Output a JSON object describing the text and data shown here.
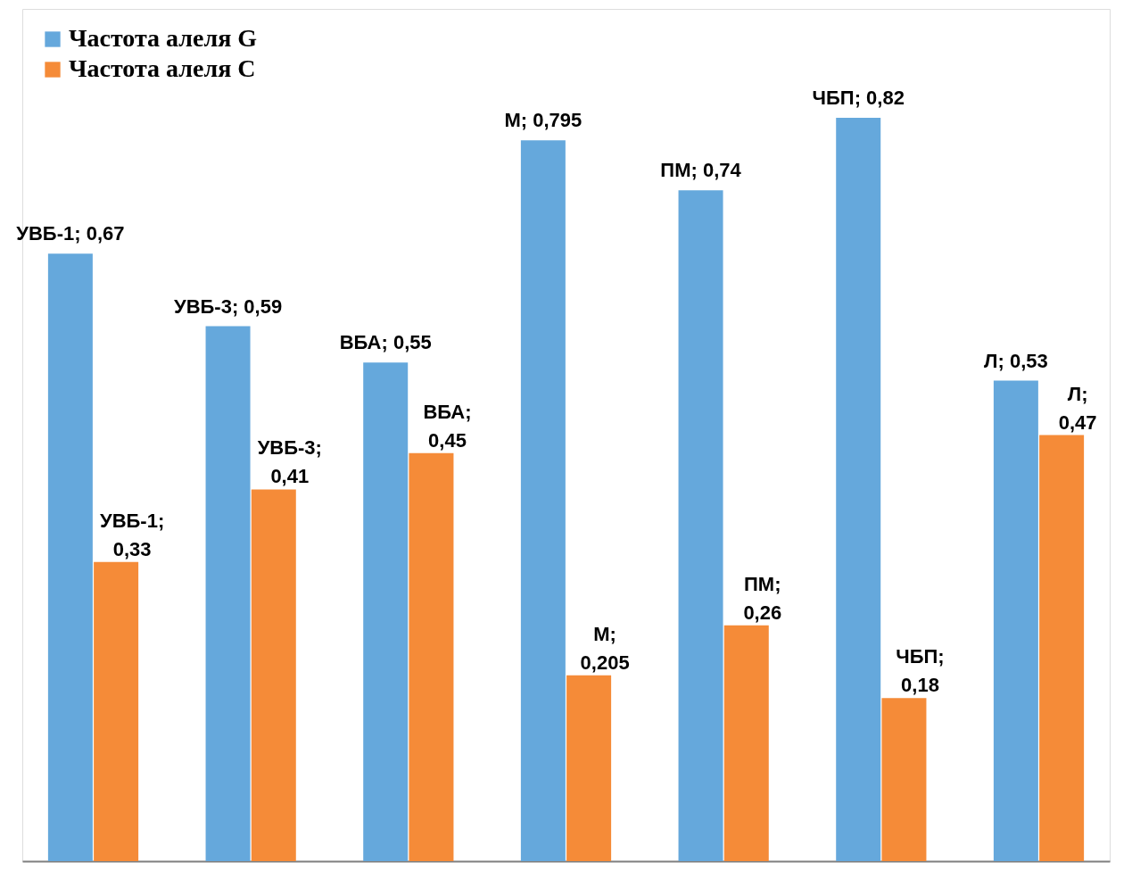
{
  "chart_data": {
    "type": "bar",
    "categories": [
      null,
      null,
      null,
      null,
      null,
      null,
      null
    ],
    "series": [
      {
        "name": "Частота алеля G",
        "color": "#65a8dc",
        "values": [
          0.67,
          0.59,
          0.55,
          0.795,
          0.74,
          0.82,
          0.53
        ],
        "value_labels": [
          "УВБ-1; 0,67",
          "УВБ-3; 0,59",
          "ВБА; 0,55",
          "М; 0,795",
          "ПМ; 0,74",
          "ЧБП; 0,82",
          "Л; 0,53"
        ]
      },
      {
        "name": "Частота алеля С",
        "color": "#f58b38",
        "values": [
          0.33,
          0.41,
          0.45,
          0.205,
          0.26,
          0.18,
          0.47
        ],
        "value_labels": [
          "УВБ-1; 0,33",
          "УВБ-3; 0,41",
          "ВБА; 0,45",
          "М; 0,205",
          "ПМ; 0,26",
          "ЧБП; 0,18",
          "Л; 0,47"
        ]
      }
    ],
    "ylim": [
      0,
      0.94
    ],
    "tick_labels": false,
    "grid": false,
    "legend": "top left"
  }
}
